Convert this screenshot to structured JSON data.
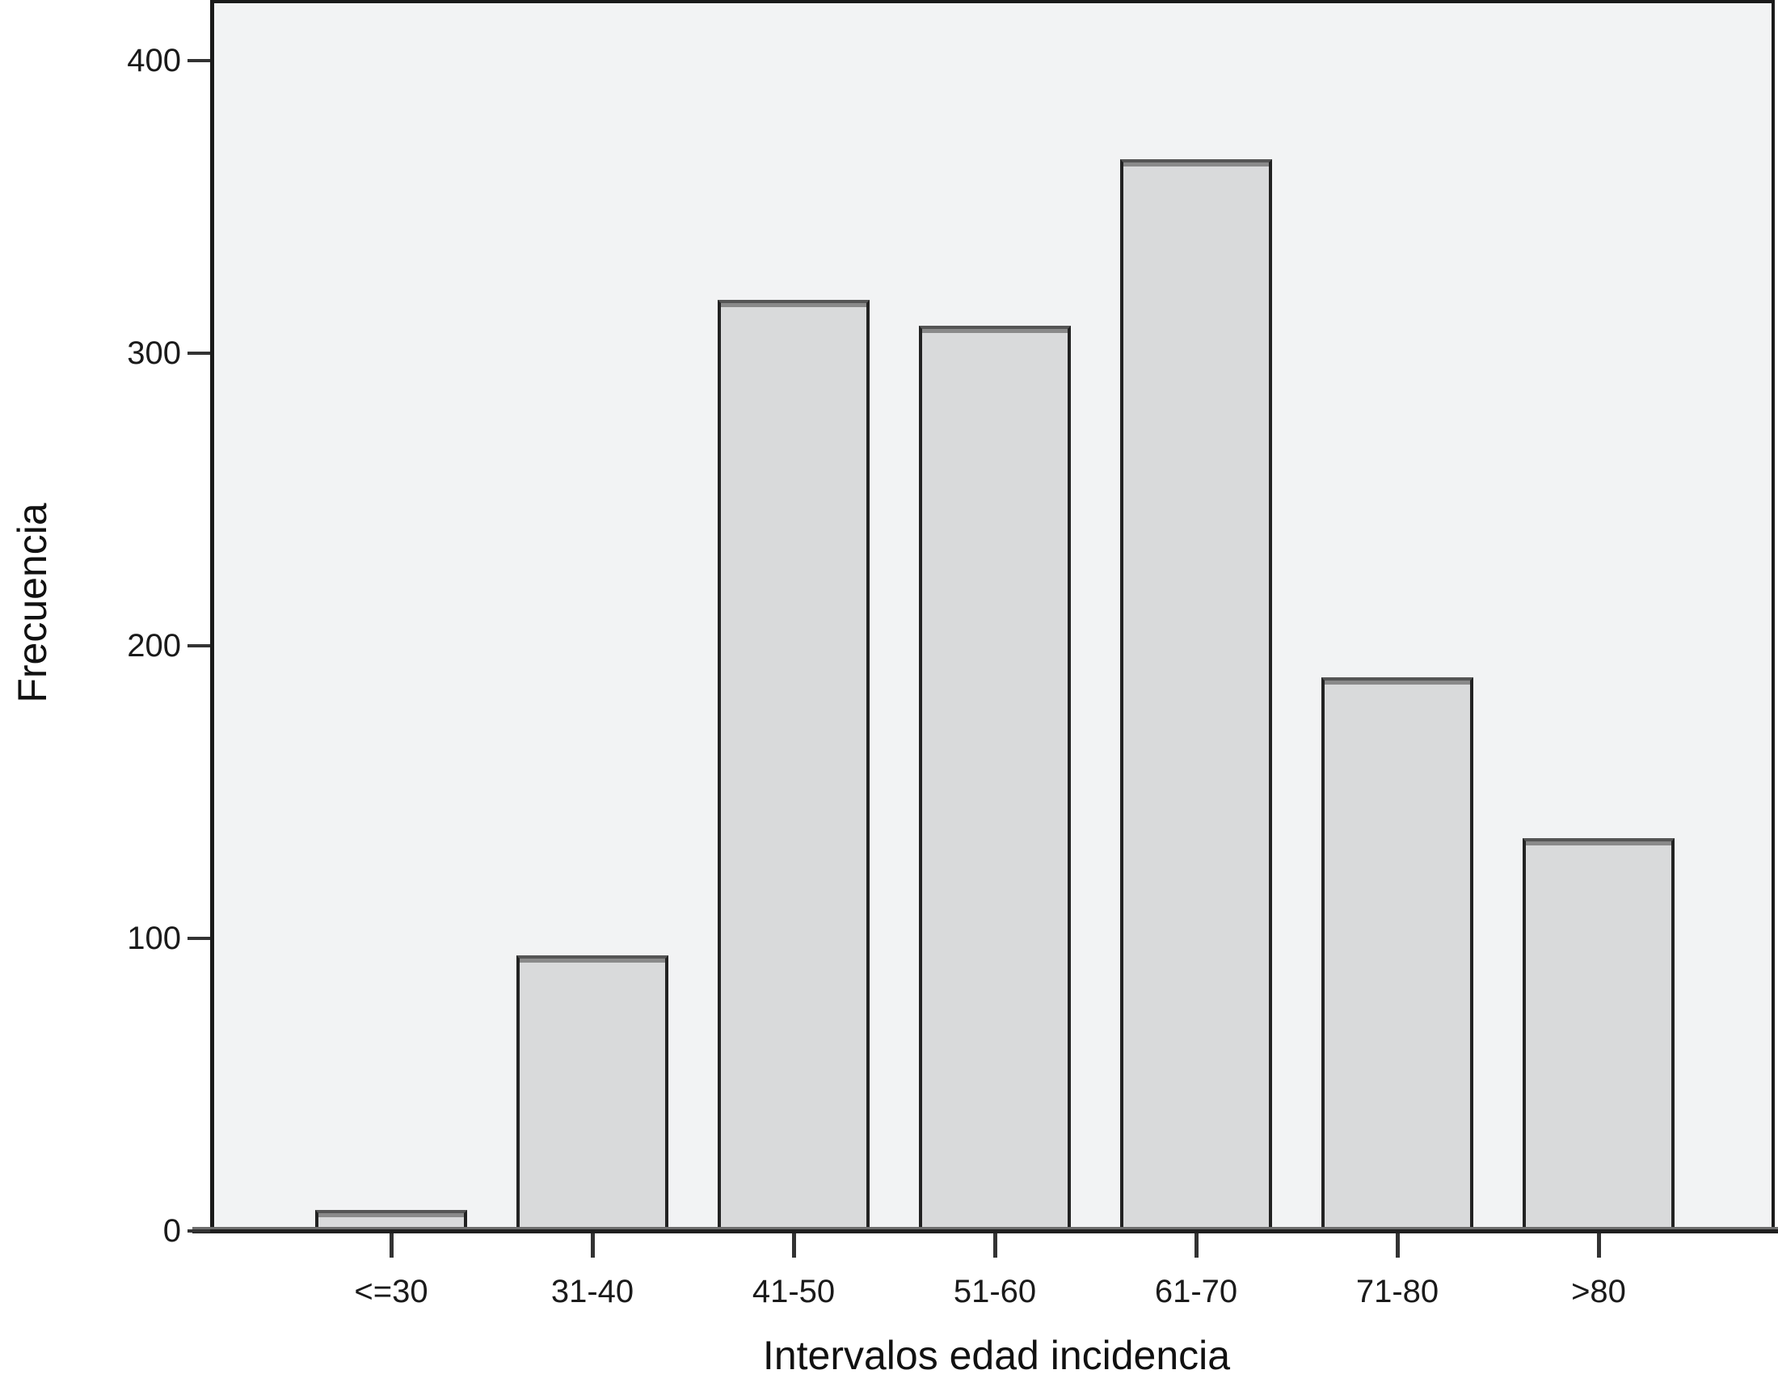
{
  "chart_data": {
    "type": "bar",
    "title": "",
    "categories": [
      "<=30",
      "31-40",
      "41-50",
      "51-60",
      "61-70",
      "71-80",
      ">80"
    ],
    "values": [
      7,
      94,
      318,
      309,
      366,
      189,
      134
    ],
    "xlabel": "Intervalos edad incidencia",
    "ylabel": "Frecuencia",
    "yticks": [
      0,
      100,
      200,
      300,
      400
    ],
    "ylim": [
      0,
      420
    ],
    "grid": false,
    "legend": "none",
    "colors": {
      "plot_background": "#f2f3f4",
      "bar_fill": "#d9dadb",
      "bar_border": "#222222",
      "bar_top_edge": "#555555",
      "bar_top_bevel": "#8a8a8a",
      "frame": "#1a1a1a",
      "axis_line": "#1f1f1f",
      "text": "#1a1a1a",
      "page_background": "#ffffff"
    }
  }
}
